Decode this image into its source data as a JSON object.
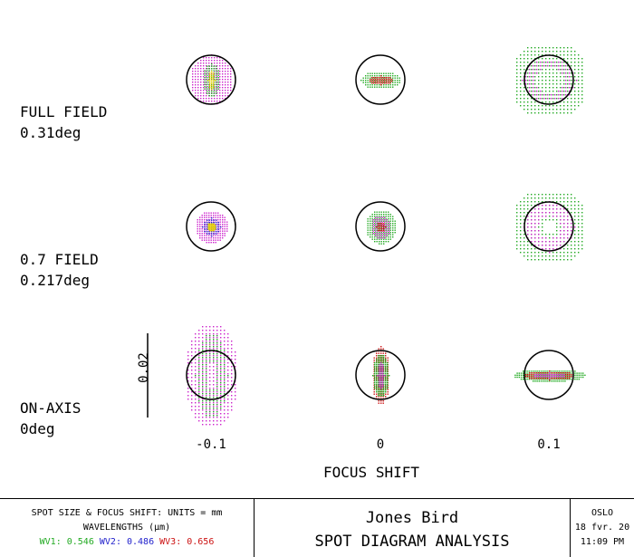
{
  "rows": [
    {
      "label": "FULL FIELD",
      "angle": "0.31deg"
    },
    {
      "label": "0.7 FIELD",
      "angle": "0.217deg"
    },
    {
      "label": "ON-AXIS",
      "angle": "0deg"
    }
  ],
  "focus_ticks": [
    "-0.1",
    "0",
    "0.1"
  ],
  "axis_title": "FOCUS SHIFT",
  "scale_label": "0.02",
  "footer": {
    "units": "SPOT SIZE & FOCUS SHIFT: UNITS = mm",
    "wavelengths_label": "WAVELENGTHS (µm)",
    "wv1": "WV1: 0.546",
    "wv2": "WV2: 0.486",
    "wv3": "WV3: 0.656",
    "author": "Jones Bird",
    "analysis": "SPOT DIAGRAM ANALYSIS",
    "program": "OSLO",
    "date": "18 fvr. 20",
    "time": "11:09 PM"
  },
  "colors": {
    "wv1": "#22aa22",
    "wv2": "#2222cc",
    "wv3": "#cc1111",
    "magenta": "#cc22cc",
    "yellow": "#e6d200"
  }
}
